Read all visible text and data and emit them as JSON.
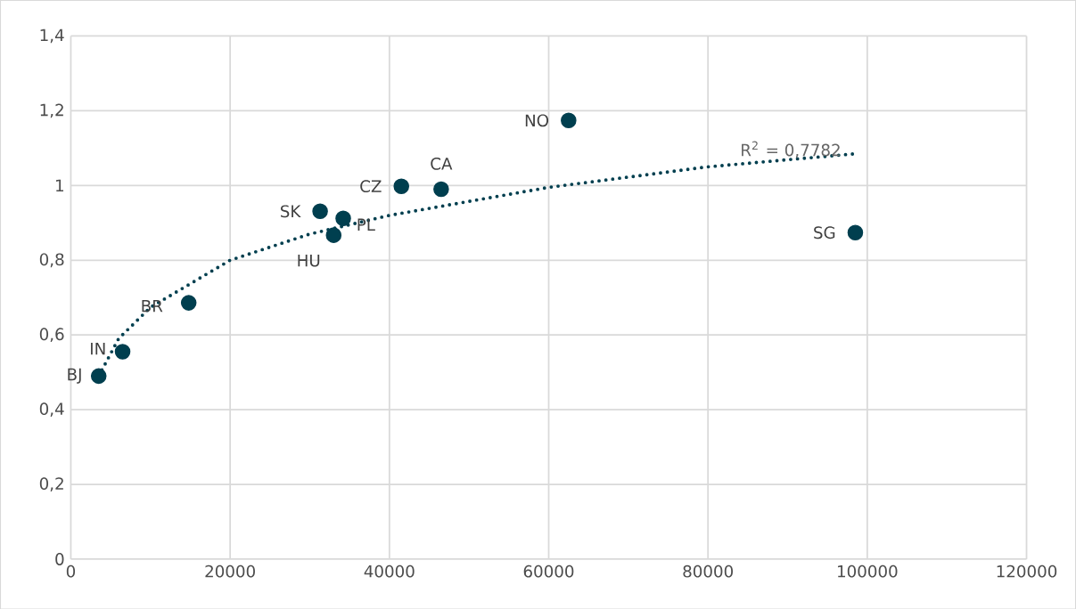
{
  "chart_data": {
    "type": "scatter",
    "series": [
      {
        "color": "#003f4f",
        "marker": "circle",
        "x": [
          3500,
          6500,
          14800,
          31300,
          33000,
          34200,
          41500,
          46500,
          62500,
          98500
        ],
        "values": [
          0.49,
          0.555,
          0.686,
          0.931,
          0.867,
          0.912,
          0.998,
          0.99,
          1.174,
          0.874
        ]
      },
      {
        "type": "line",
        "color": "#003f4f",
        "marker": "none",
        "line_style": "dotted",
        "x": [
          3500,
          6000,
          10000,
          20000,
          30000,
          40000,
          60000,
          80000,
          98500
        ],
        "values": [
          0.49,
          0.59,
          0.674,
          0.8,
          0.87,
          0.92,
          0.995,
          1.05,
          1.085
        ]
      }
    ],
    "annotations": [
      {
        "text": "BJ",
        "x": 3500,
        "y": 0.49
      },
      {
        "text": "IN",
        "x": 6500,
        "y": 0.555
      },
      {
        "text": "BR",
        "x": 14800,
        "y": 0.686
      },
      {
        "text": "SK",
        "x": 31300,
        "y": 0.931
      },
      {
        "text": "HU",
        "x": 33000,
        "y": 0.867
      },
      {
        "text": "PL",
        "x": 34200,
        "y": 0.912
      },
      {
        "text": "CZ",
        "x": 41500,
        "y": 0.998
      },
      {
        "text": "CA",
        "x": 46500,
        "y": 0.99
      },
      {
        "text": "NO",
        "x": 62500,
        "y": 1.174
      },
      {
        "text": "SG",
        "x": 98500,
        "y": 0.874
      },
      "R$^{2}$ = 0,7782"
    ],
    "xlim": [
      0,
      120000
    ],
    "ylim": [
      0,
      1.4
    ],
    "xticks": [
      0,
      20000,
      40000,
      60000,
      80000,
      100000,
      120000
    ],
    "yticks": [
      {
        "value": 0,
        "label": "0"
      },
      {
        "value": 0.2,
        "label": "0,2"
      },
      {
        "value": 0.4,
        "label": "0,4"
      },
      {
        "value": 0.6,
        "label": "0,6"
      },
      {
        "value": 0.8,
        "label": "0,8"
      },
      {
        "value": 1,
        "label": "1"
      },
      {
        "value": 1.2,
        "label": "1,2"
      },
      {
        "value": 1.4,
        "label": "1,4"
      }
    ],
    "grid": true
  }
}
